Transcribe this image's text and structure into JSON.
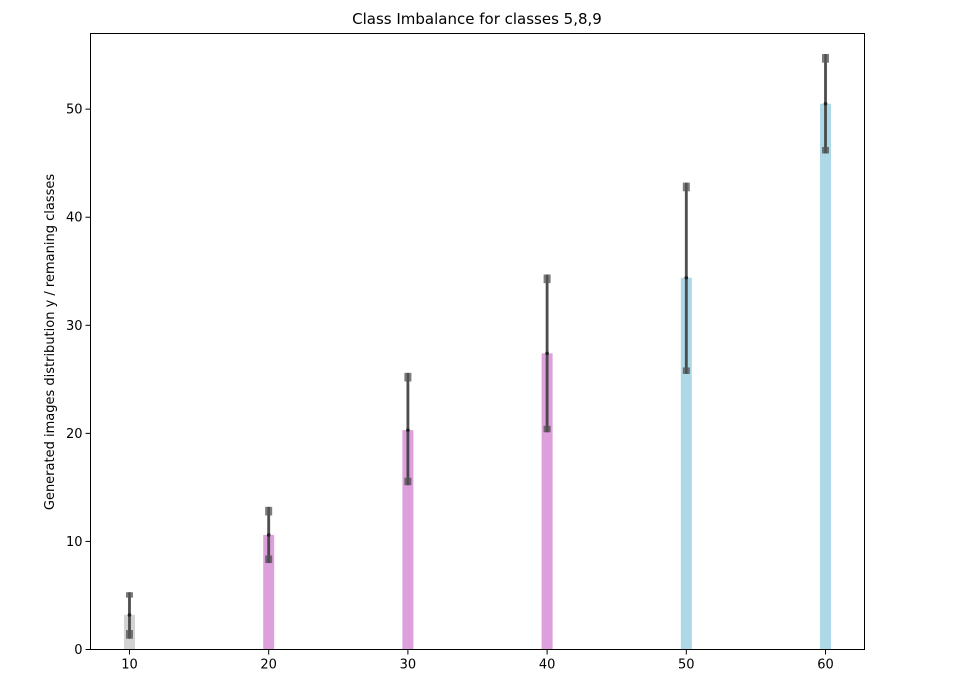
{
  "chart_data": {
    "type": "bar",
    "title": "Class Imbalance for classes 5,8,9",
    "xlabel": "",
    "ylabel": "Generated images distribution y / remaning classes",
    "xlim": [
      7.2,
      62.8
    ],
    "ylim": [
      0,
      57
    ],
    "x_ticks": [
      10,
      20,
      30,
      40,
      50,
      60
    ],
    "y_ticks": [
      0,
      10,
      20,
      30,
      40,
      50
    ],
    "grid": false,
    "bars": [
      {
        "x": 10,
        "value": 3.2,
        "color": "#d3d3d3",
        "q_low": 1.8,
        "q_high": 4.8,
        "min": 1.0,
        "max": 5.3
      },
      {
        "x": 20,
        "value": 10.6,
        "color": "#dda0dd",
        "q_low": 8.7,
        "q_high": 12.4,
        "min": 8.0,
        "max": 13.2
      },
      {
        "x": 30,
        "value": 20.3,
        "color": "#dda0dd",
        "q_low": 15.9,
        "q_high": 24.8,
        "min": 15.2,
        "max": 25.6
      },
      {
        "x": 40,
        "value": 27.4,
        "color": "#dda0dd",
        "q_low": 20.7,
        "q_high": 33.9,
        "min": 20.1,
        "max": 34.7
      },
      {
        "x": 50,
        "value": 34.4,
        "color": "#add8e6",
        "q_low": 26.1,
        "q_high": 42.4,
        "min": 25.5,
        "max": 43.2
      },
      {
        "x": 60,
        "value": 50.5,
        "color": "#add8e6",
        "q_low": 46.5,
        "q_high": 54.3,
        "min": 45.9,
        "max": 55.1
      }
    ],
    "errorbar_color": "#555555"
  }
}
